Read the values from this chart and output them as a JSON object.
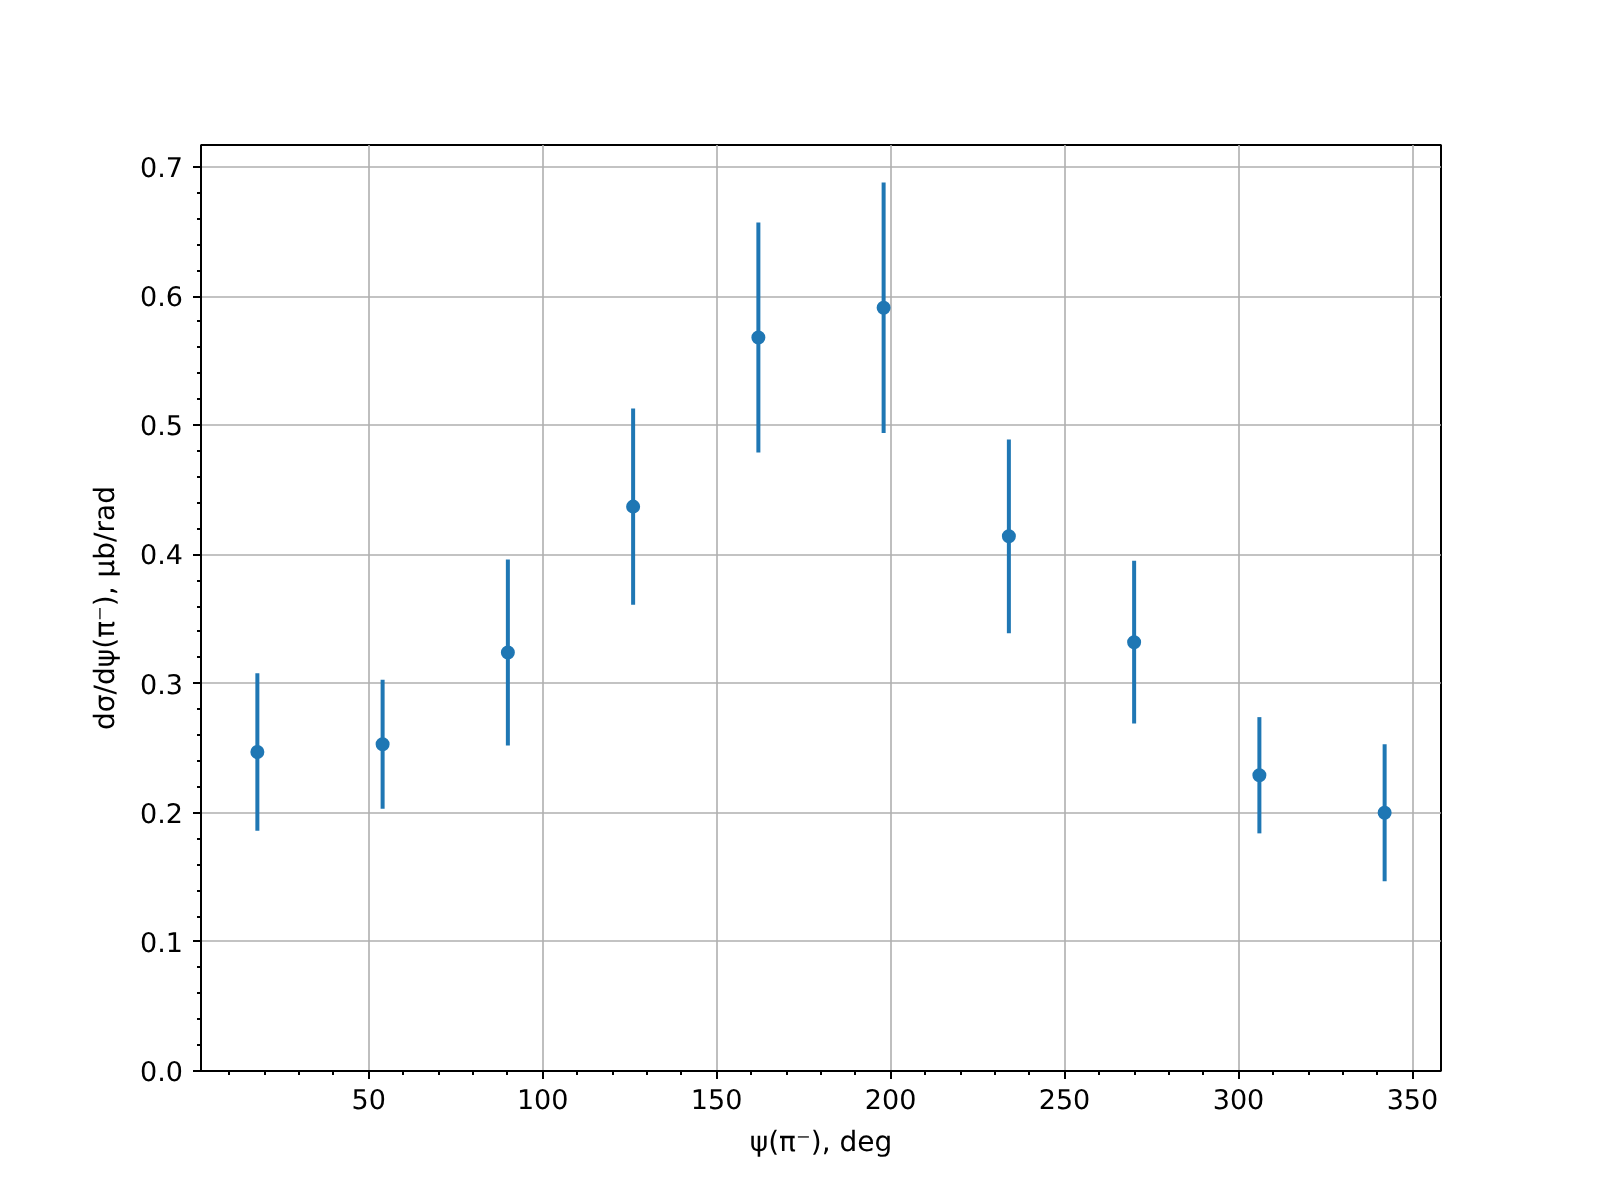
{
  "chart_data": {
    "type": "scatter",
    "xlabel": "ψ(π⁻), deg",
    "ylabel": "dσ/dψ(π⁻), μb/rad",
    "x": [
      18,
      54,
      90,
      126,
      162,
      198,
      234,
      270,
      306,
      342
    ],
    "series": [
      {
        "color": "#1f77b4",
        "values": [
          0.247,
          0.253,
          0.324,
          0.437,
          0.568,
          0.591,
          0.414,
          0.332,
          0.229,
          0.2
        ],
        "errors": [
          0.061,
          0.05,
          0.072,
          0.076,
          0.089,
          0.097,
          0.075,
          0.063,
          0.045,
          0.053
        ]
      }
    ],
    "xlim": [
      1.8,
      358.2
    ],
    "ylim": [
      0,
      0.717
    ],
    "xticks": [
      {
        "value": 10,
        "label": null
      },
      {
        "value": 20,
        "label": null
      },
      {
        "value": 30,
        "label": null
      },
      {
        "value": 40,
        "label": null
      },
      50,
      {
        "value": 60,
        "label": null
      },
      {
        "value": 70,
        "label": null
      },
      {
        "value": 80,
        "label": null
      },
      {
        "value": 90,
        "label": null
      },
      100,
      {
        "value": 110,
        "label": null
      },
      {
        "value": 120,
        "label": null
      },
      {
        "value": 130,
        "label": null
      },
      {
        "value": 140,
        "label": null
      },
      150,
      {
        "value": 160,
        "label": null
      },
      {
        "value": 170,
        "label": null
      },
      {
        "value": 180,
        "label": null
      },
      {
        "value": 190,
        "label": null
      },
      200,
      {
        "value": 210,
        "label": null
      },
      {
        "value": 220,
        "label": null
      },
      {
        "value": 230,
        "label": null
      },
      {
        "value": 240,
        "label": null
      },
      250,
      {
        "value": 260,
        "label": null
      },
      {
        "value": 270,
        "label": null
      },
      {
        "value": 280,
        "label": null
      },
      {
        "value": 290,
        "label": null
      },
      300,
      {
        "value": 310,
        "label": null
      },
      {
        "value": 320,
        "label": null
      },
      {
        "value": 330,
        "label": null
      },
      {
        "value": 340,
        "label": null
      },
      350
    ],
    "yticks": [
      {
        "value": 0,
        "label": "0.0"
      },
      {
        "value": 0.02,
        "label": null
      },
      {
        "value": 0.04,
        "label": null
      },
      {
        "value": 0.06,
        "label": null
      },
      {
        "value": 0.08,
        "label": null
      },
      0.1,
      {
        "value": 0.12,
        "label": null
      },
      {
        "value": 0.14,
        "label": null
      },
      {
        "value": 0.16,
        "label": null
      },
      {
        "value": 0.18,
        "label": null
      },
      0.2,
      {
        "value": 0.22,
        "label": null
      },
      {
        "value": 0.24,
        "label": null
      },
      {
        "value": 0.26,
        "label": null
      },
      {
        "value": 0.28,
        "label": null
      },
      0.3,
      {
        "value": 0.32,
        "label": null
      },
      {
        "value": 0.34,
        "label": null
      },
      {
        "value": 0.36,
        "label": null
      },
      {
        "value": 0.38,
        "label": null
      },
      0.4,
      {
        "value": 0.42,
        "label": null
      },
      {
        "value": 0.44,
        "label": null
      },
      {
        "value": 0.46,
        "label": null
      },
      {
        "value": 0.48,
        "label": null
      },
      0.5,
      {
        "value": 0.52,
        "label": null
      },
      {
        "value": 0.54,
        "label": null
      },
      {
        "value": 0.56,
        "label": null
      },
      {
        "value": 0.58,
        "label": null
      },
      0.6,
      {
        "value": 0.62,
        "label": null
      },
      {
        "value": 0.64,
        "label": null
      },
      {
        "value": 0.66,
        "label": null
      },
      {
        "value": 0.68,
        "label": null
      },
      0.7
    ],
    "grid": true,
    "marker": "circle"
  }
}
